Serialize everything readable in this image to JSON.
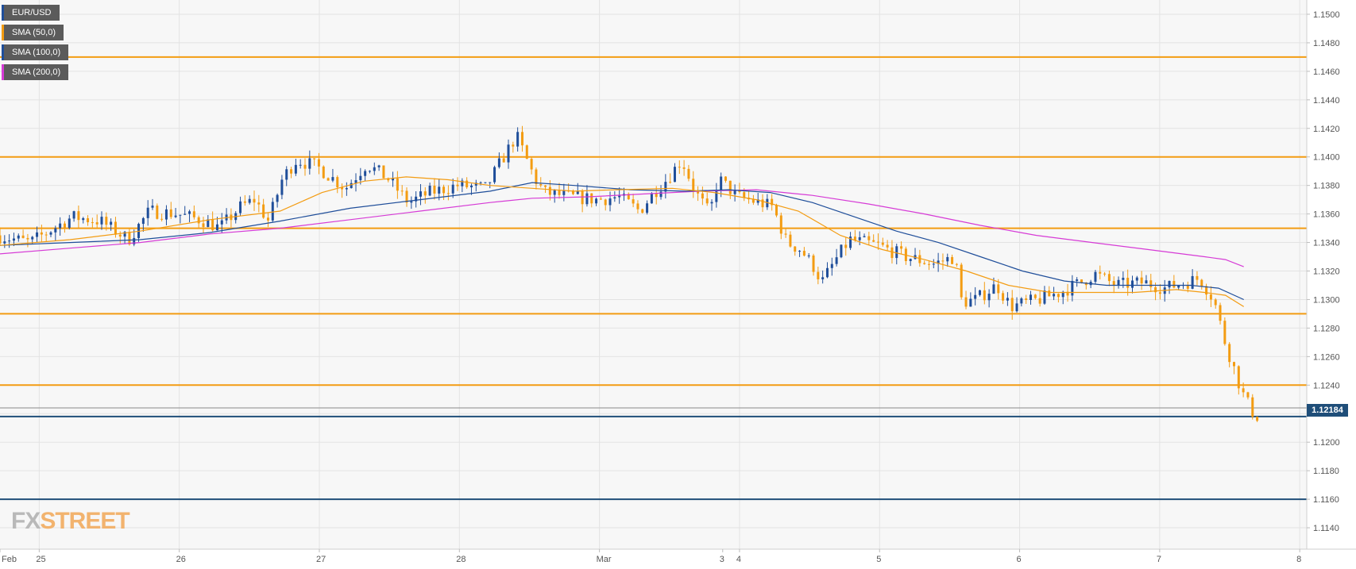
{
  "chart_data": {
    "type": "line",
    "title": "EUR/USD",
    "legend": [
      {
        "name": "EUR/USD",
        "color": "#1f4e9a"
      },
      {
        "name": "SMA (50,0)",
        "color": "#f39c12"
      },
      {
        "name": "SMA (100,0)",
        "color": "#1f4e9a"
      },
      {
        "name": "SMA (200,0)",
        "color": "#d63bd6"
      }
    ],
    "legend_position": "top-left",
    "grid": true,
    "ylim": [
      1.1125,
      1.151
    ],
    "y_ticks": [
      "1.1500",
      "1.1480",
      "1.1460",
      "1.1440",
      "1.1420",
      "1.1400",
      "1.1380",
      "1.1360",
      "1.1340",
      "1.1320",
      "1.1300",
      "1.1280",
      "1.1260",
      "1.1240",
      "1.1220",
      "1.1200",
      "1.1180",
      "1.1160",
      "1.1140"
    ],
    "x_ticks": [
      {
        "label": "Feb",
        "t": 0
      },
      {
        "label": "25",
        "t": 0.28
      },
      {
        "label": "26",
        "t": 1.28
      },
      {
        "label": "27",
        "t": 2.28
      },
      {
        "label": "28",
        "t": 3.28
      },
      {
        "label": "Mar",
        "t": 4.28
      },
      {
        "label": "3",
        "t": 5.16
      },
      {
        "label": "4",
        "t": 5.28
      },
      {
        "label": "5",
        "t": 6.28
      },
      {
        "label": "6",
        "t": 7.28
      },
      {
        "label": "7",
        "t": 8.28
      },
      {
        "label": "8",
        "t": 9.28
      }
    ],
    "xlim": [
      0,
      9.33
    ],
    "last_price": "1.12184",
    "last_price_value": 1.1218,
    "colors": {
      "up": "#1f4e9a",
      "down": "#f39c12",
      "sma50": "#f39c12",
      "sma100": "#1f4e9a",
      "sma200": "#d63bd6",
      "hline_orange": "#f39c12",
      "hline_blue": "#1f4e79"
    },
    "horizontal_levels": [
      {
        "value": 1.147,
        "color": "orange"
      },
      {
        "value": 1.14,
        "color": "orange"
      },
      {
        "value": 1.135,
        "color": "orange"
      },
      {
        "value": 1.129,
        "color": "orange"
      },
      {
        "value": 1.124,
        "color": "orange"
      },
      {
        "value": 1.1218,
        "color": "blue"
      },
      {
        "value": 1.116,
        "color": "blue"
      }
    ],
    "price_anchors": [
      [
        0,
        1.1345
      ],
      [
        0.25,
        1.134
      ],
      [
        0.55,
        1.1358
      ],
      [
        0.75,
        1.1355
      ],
      [
        0.95,
        1.1342
      ],
      [
        1.1,
        1.1362
      ],
      [
        1.3,
        1.136
      ],
      [
        1.5,
        1.1355
      ],
      [
        1.6,
        1.135
      ],
      [
        1.75,
        1.1365
      ],
      [
        1.85,
        1.137
      ],
      [
        1.95,
        1.1355
      ],
      [
        2.05,
        1.1385
      ],
      [
        2.15,
        1.1398
      ],
      [
        2.3,
        1.1393
      ],
      [
        2.5,
        1.1378
      ],
      [
        2.65,
        1.1395
      ],
      [
        2.8,
        1.1385
      ],
      [
        2.95,
        1.1368
      ],
      [
        3.1,
        1.1375
      ],
      [
        3.3,
        1.138
      ],
      [
        3.5,
        1.1378
      ],
      [
        3.6,
        1.1395
      ],
      [
        3.72,
        1.1415
      ],
      [
        3.85,
        1.1385
      ],
      [
        3.92,
        1.1375
      ],
      [
        4.1,
        1.1372
      ],
      [
        4.3,
        1.137
      ],
      [
        4.45,
        1.1372
      ],
      [
        4.6,
        1.1362
      ],
      [
        4.7,
        1.1375
      ],
      [
        4.8,
        1.1385
      ],
      [
        4.9,
        1.1398
      ],
      [
        5.0,
        1.1375
      ],
      [
        5.1,
        1.136
      ],
      [
        5.16,
        1.1385
      ],
      [
        5.3,
        1.1372
      ],
      [
        5.45,
        1.1368
      ],
      [
        5.55,
        1.1365
      ],
      [
        5.65,
        1.134
      ],
      [
        5.75,
        1.1335
      ],
      [
        5.85,
        1.1322
      ],
      [
        5.9,
        1.1312
      ],
      [
        6.0,
        1.1328
      ],
      [
        6.1,
        1.1342
      ],
      [
        6.3,
        1.1338
      ],
      [
        6.5,
        1.133
      ],
      [
        6.7,
        1.1325
      ],
      [
        6.85,
        1.133
      ],
      [
        6.9,
        1.1298
      ],
      [
        7.0,
        1.13
      ],
      [
        7.15,
        1.131
      ],
      [
        7.25,
        1.1295
      ],
      [
        7.45,
        1.13
      ],
      [
        7.6,
        1.1305
      ],
      [
        7.75,
        1.1312
      ],
      [
        7.85,
        1.1318
      ],
      [
        8.0,
        1.131
      ],
      [
        8.2,
        1.1312
      ],
      [
        8.35,
        1.1308
      ],
      [
        8.5,
        1.1312
      ],
      [
        8.6,
        1.1315
      ],
      [
        8.7,
        1.13
      ],
      [
        8.78,
        1.127
      ],
      [
        8.85,
        1.125
      ],
      [
        8.9,
        1.1235
      ],
      [
        8.97,
        1.1222
      ],
      [
        9.0,
        1.1218
      ]
    ],
    "sma50_points": [
      [
        0,
        1.1338
      ],
      [
        0.5,
        1.1342
      ],
      [
        1.0,
        1.1348
      ],
      [
        1.5,
        1.1356
      ],
      [
        2.0,
        1.1362
      ],
      [
        2.3,
        1.1375
      ],
      [
        2.6,
        1.1383
      ],
      [
        2.9,
        1.1386
      ],
      [
        3.2,
        1.1384
      ],
      [
        3.5,
        1.138
      ],
      [
        3.8,
        1.1378
      ],
      [
        4.1,
        1.1376
      ],
      [
        4.4,
        1.1377
      ],
      [
        4.8,
        1.1378
      ],
      [
        5.1,
        1.1375
      ],
      [
        5.4,
        1.137
      ],
      [
        5.7,
        1.1362
      ],
      [
        6.0,
        1.1345
      ],
      [
        6.3,
        1.1335
      ],
      [
        6.6,
        1.1328
      ],
      [
        6.9,
        1.132
      ],
      [
        7.2,
        1.131
      ],
      [
        7.5,
        1.1305
      ],
      [
        7.8,
        1.1305
      ],
      [
        8.1,
        1.1305
      ],
      [
        8.4,
        1.1307
      ],
      [
        8.6,
        1.1305
      ],
      [
        8.75,
        1.1303
      ],
      [
        8.88,
        1.1295
      ]
    ],
    "sma100_points": [
      [
        0,
        1.1338
      ],
      [
        0.5,
        1.134
      ],
      [
        1.0,
        1.1342
      ],
      [
        1.5,
        1.1347
      ],
      [
        2.0,
        1.1355
      ],
      [
        2.5,
        1.1364
      ],
      [
        3.0,
        1.137
      ],
      [
        3.5,
        1.1376
      ],
      [
        3.8,
        1.1382
      ],
      [
        4.1,
        1.138
      ],
      [
        4.5,
        1.1377
      ],
      [
        4.9,
        1.1376
      ],
      [
        5.2,
        1.1377
      ],
      [
        5.5,
        1.1375
      ],
      [
        5.8,
        1.1368
      ],
      [
        6.1,
        1.1358
      ],
      [
        6.4,
        1.1348
      ],
      [
        6.7,
        1.134
      ],
      [
        7.0,
        1.133
      ],
      [
        7.3,
        1.132
      ],
      [
        7.6,
        1.1313
      ],
      [
        7.9,
        1.131
      ],
      [
        8.2,
        1.131
      ],
      [
        8.5,
        1.131
      ],
      [
        8.7,
        1.1308
      ],
      [
        8.88,
        1.13
      ]
    ],
    "sma200_points": [
      [
        0,
        1.1332
      ],
      [
        0.5,
        1.1336
      ],
      [
        1.0,
        1.134
      ],
      [
        1.5,
        1.1346
      ],
      [
        2.0,
        1.135
      ],
      [
        2.5,
        1.1356
      ],
      [
        3.0,
        1.1362
      ],
      [
        3.5,
        1.1368
      ],
      [
        3.8,
        1.1371
      ],
      [
        4.2,
        1.1372
      ],
      [
        4.6,
        1.1374
      ],
      [
        5.0,
        1.1376
      ],
      [
        5.4,
        1.1377
      ],
      [
        5.8,
        1.1373
      ],
      [
        6.2,
        1.1367
      ],
      [
        6.6,
        1.136
      ],
      [
        7.0,
        1.1352
      ],
      [
        7.4,
        1.1345
      ],
      [
        7.8,
        1.134
      ],
      [
        8.2,
        1.1335
      ],
      [
        8.6,
        1.133
      ],
      [
        8.75,
        1.1328
      ],
      [
        8.88,
        1.1323
      ]
    ]
  },
  "watermark": {
    "part1": "FX",
    "part2": "STREET"
  }
}
